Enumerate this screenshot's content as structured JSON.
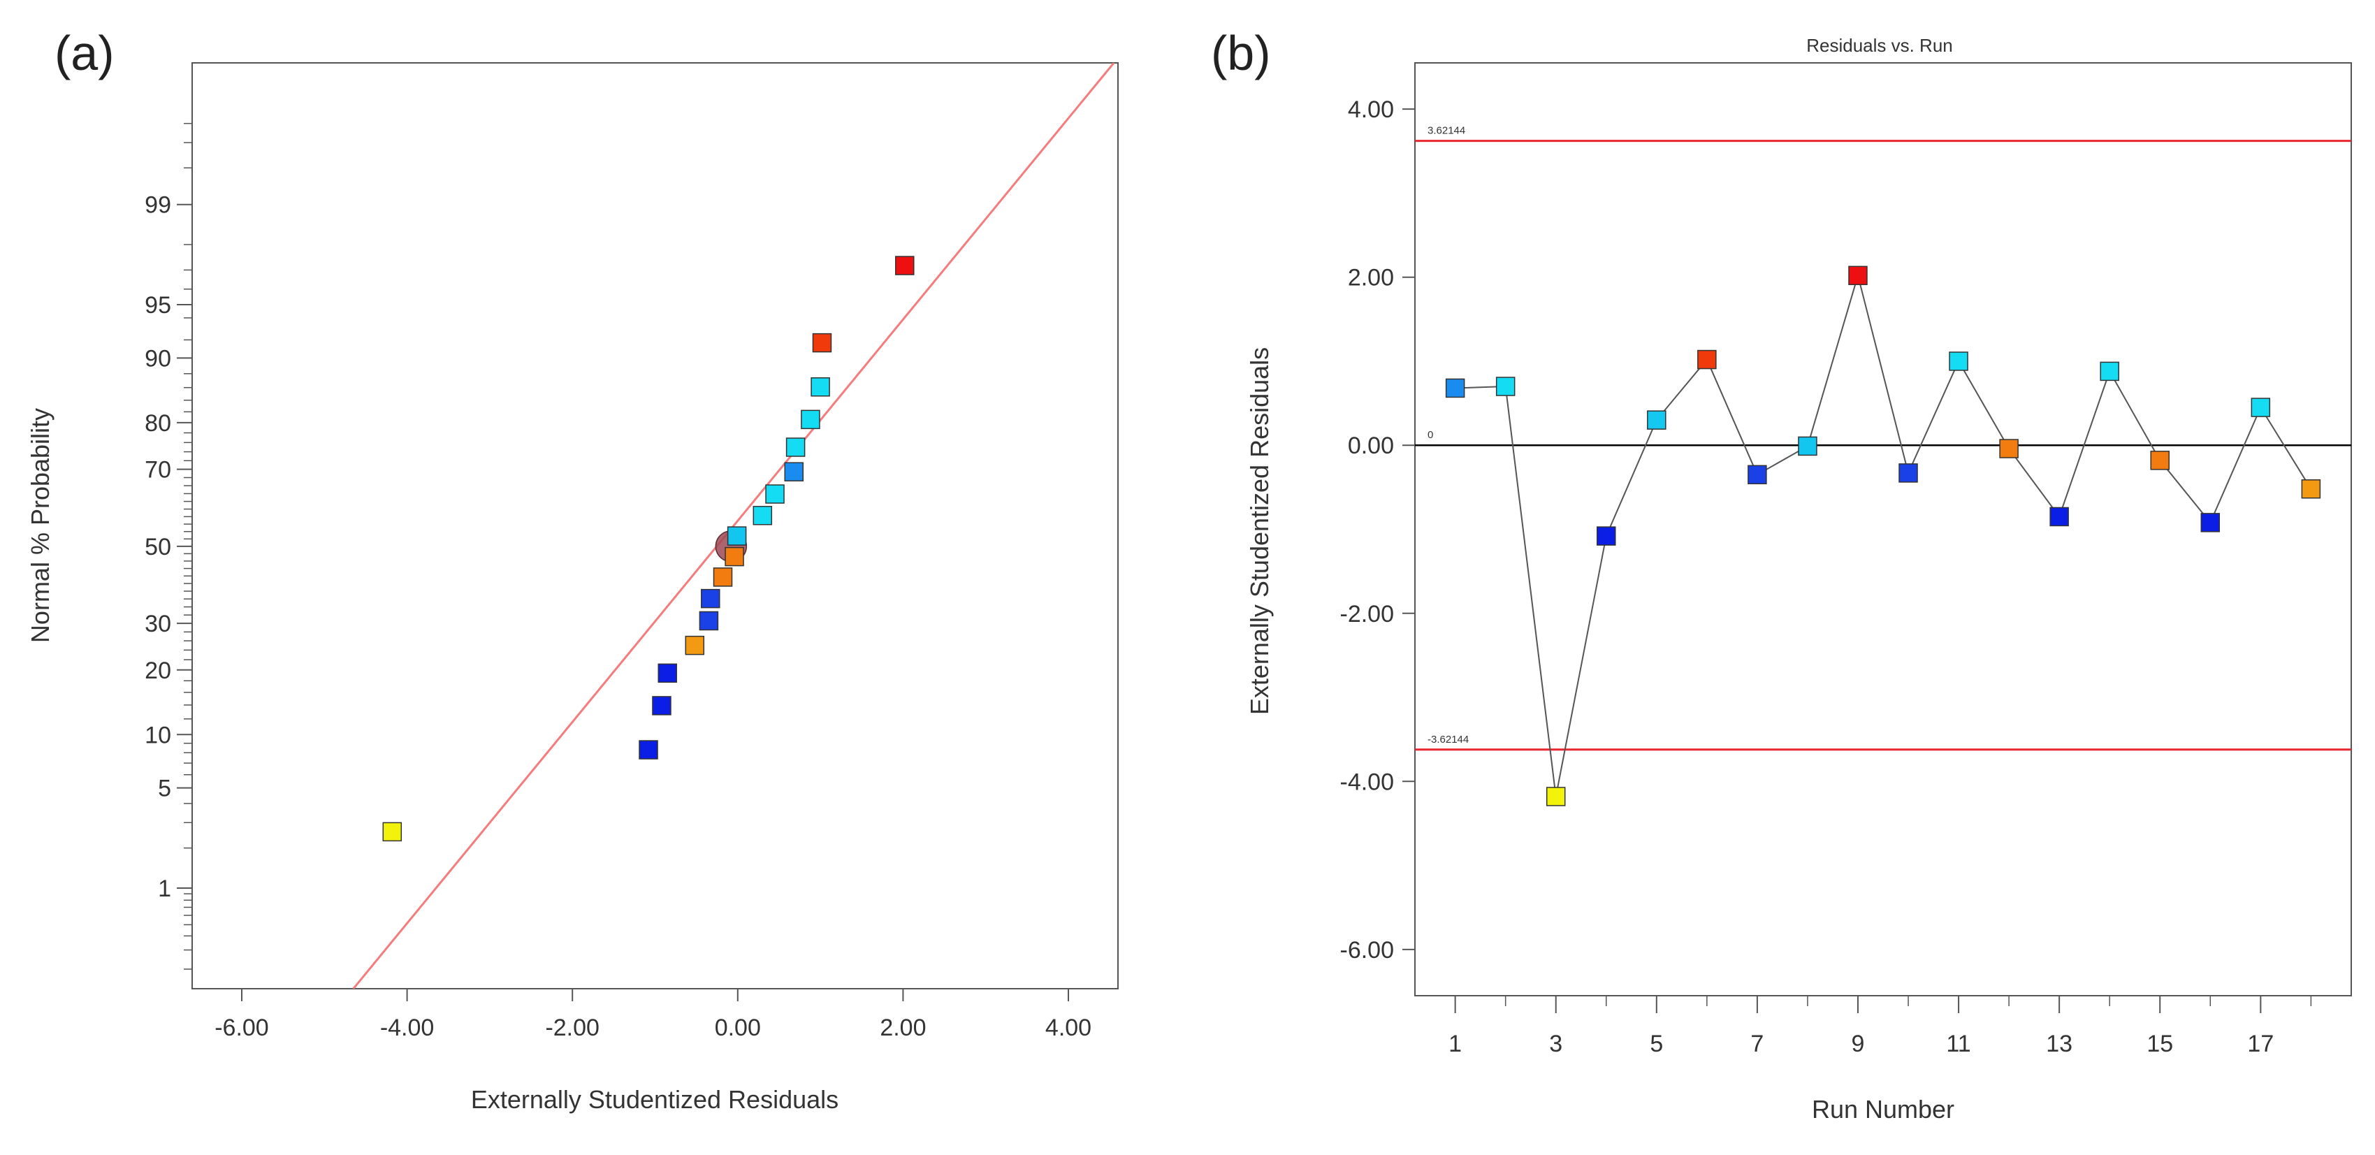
{
  "chart_data": [
    {
      "panel_label": "(a)",
      "type": "scatter",
      "title": "",
      "xlabel": "Externally Studentized Residuals",
      "ylabel": "Normal % Probability",
      "xlim": [
        -6.6,
        4.6
      ],
      "x_ticks": [
        -6,
        -4,
        -2,
        0,
        2,
        4
      ],
      "x_tick_labels": [
        "-6.00",
        "-4.00",
        "-2.00",
        "0.00",
        "2.00",
        "4.00"
      ],
      "y_scale": "normal-probability",
      "ylim_percent": [
        0.13,
        99.95
      ],
      "y_ticks": [
        1,
        5,
        10,
        20,
        30,
        50,
        70,
        80,
        90,
        95,
        99
      ],
      "y_tick_labels": [
        "1",
        "5",
        "10",
        "20",
        "30",
        "50",
        "70",
        "80",
        "90",
        "95",
        "99"
      ],
      "reference_line": {
        "color": "#f47c7c",
        "through": [
          [
            -4.65,
            0.13
          ],
          [
            4.55,
            99.95
          ]
        ]
      },
      "mean_marker": {
        "x": -0.08,
        "p": 50,
        "color": "#9e4a55"
      },
      "points": [
        {
          "x": -4.18,
          "p": 2.6,
          "color": "#f2f20a"
        },
        {
          "x": -1.08,
          "p": 8.3,
          "color": "#0a1ee6"
        },
        {
          "x": -0.92,
          "p": 13.9,
          "color": "#0a1ee6"
        },
        {
          "x": -0.85,
          "p": 19.4,
          "color": "#0a1ee6"
        },
        {
          "x": -0.52,
          "p": 25.0,
          "color": "#f39a12"
        },
        {
          "x": -0.35,
          "p": 30.6,
          "color": "#1a40e8"
        },
        {
          "x": -0.33,
          "p": 36.1,
          "color": "#1a40e8"
        },
        {
          "x": -0.18,
          "p": 41.7,
          "color": "#f27c10"
        },
        {
          "x": -0.04,
          "p": 47.2,
          "color": "#f27c10"
        },
        {
          "x": -0.01,
          "p": 52.8,
          "color": "#13c6f0"
        },
        {
          "x": 0.3,
          "p": 58.3,
          "color": "#14dcf2"
        },
        {
          "x": 0.45,
          "p": 63.9,
          "color": "#14dcf2"
        },
        {
          "x": 0.68,
          "p": 69.4,
          "color": "#1a8cf0"
        },
        {
          "x": 0.7,
          "p": 75.0,
          "color": "#14dcf2"
        },
        {
          "x": 0.88,
          "p": 80.6,
          "color": "#14dcf2"
        },
        {
          "x": 1.0,
          "p": 86.1,
          "color": "#14dcf2"
        },
        {
          "x": 1.02,
          "p": 91.7,
          "color": "#f03a0c"
        },
        {
          "x": 2.02,
          "p": 97.2,
          "color": "#ee1010"
        }
      ]
    },
    {
      "panel_label": "(b)",
      "type": "line",
      "title": "Residuals vs. Run",
      "xlabel": "Run Number",
      "ylabel": "Externally Studentized Residuals",
      "xlim": [
        0.2,
        18.8
      ],
      "ylim": [
        -6.55,
        4.55
      ],
      "x_ticks": [
        1,
        3,
        5,
        7,
        9,
        11,
        13,
        15,
        17
      ],
      "x_minor_ticks": [
        2,
        4,
        6,
        8,
        10,
        12,
        14,
        16,
        18
      ],
      "x_tick_labels": [
        "1",
        "3",
        "5",
        "7",
        "9",
        "11",
        "13",
        "15",
        "17"
      ],
      "y_ticks": [
        -6,
        -4,
        -2,
        0,
        2,
        4
      ],
      "y_tick_labels": [
        "-6.00",
        "-4.00",
        "-2.00",
        "0.00",
        "2.00",
        "4.00"
      ],
      "limits": [
        {
          "y": 3.62144,
          "label": "3.62144",
          "color": "#e8262d"
        },
        {
          "y": -3.62144,
          "label": "-3.62144",
          "color": "#e8262d"
        }
      ],
      "zero_line": {
        "y": 0,
        "label": "0",
        "color": "#000000"
      },
      "series": [
        {
          "name": "Residuals",
          "x": [
            1,
            2,
            3,
            4,
            5,
            6,
            7,
            8,
            9,
            10,
            11,
            12,
            13,
            14,
            15,
            16,
            17,
            18
          ],
          "values": [
            0.68,
            0.7,
            -4.18,
            -1.08,
            0.3,
            1.02,
            -0.35,
            -0.01,
            2.02,
            -0.33,
            1.0,
            -0.04,
            -0.85,
            0.88,
            -0.18,
            -0.92,
            0.45,
            -0.52
          ],
          "colors": [
            "#1a8cf0",
            "#14dcf2",
            "#f2f20a",
            "#0a1ee6",
            "#14c8f0",
            "#f03a0c",
            "#1a40e8",
            "#13c6f0",
            "#ee1010",
            "#1a40e8",
            "#14dcf2",
            "#f27c10",
            "#0a1ee6",
            "#14dcf2",
            "#f27c10",
            "#0a1ee6",
            "#14dcf2",
            "#f39a12"
          ]
        }
      ]
    }
  ]
}
